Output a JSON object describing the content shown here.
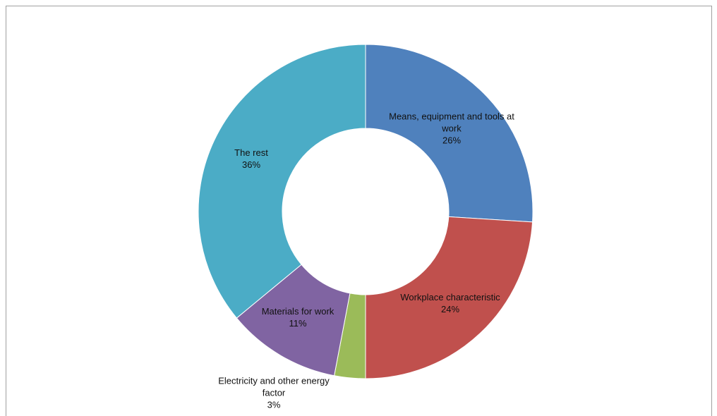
{
  "chart_data": {
    "type": "donut",
    "categories": [
      "Means, equipment and tools at work",
      "Workplace characteristic",
      "Electricity and other energy factor",
      "Materials for work",
      "The rest"
    ],
    "values": [
      26,
      24,
      3,
      11,
      36
    ],
    "value_labels": [
      "26%",
      "24%",
      "3%",
      "11%",
      "36%"
    ],
    "colors": [
      "#4f81bd",
      "#c0504d",
      "#9bbb59",
      "#8064a2",
      "#4bacc6"
    ]
  }
}
